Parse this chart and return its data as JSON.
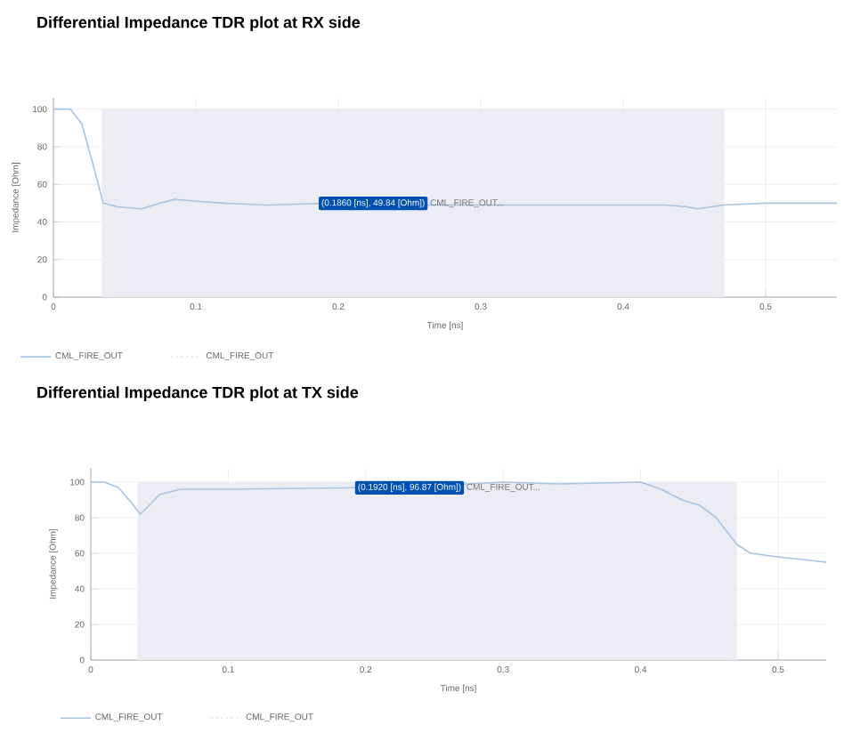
{
  "chart_data": [
    {
      "type": "line",
      "title": "Differential Impedance TDR plot at RX side",
      "xlabel": "Time [ns]",
      "ylabel": "Impedance [Ohm]",
      "x": [
        0,
        0.012,
        0.02,
        0.028,
        0.035,
        0.045,
        0.062,
        0.075,
        0.085,
        0.1,
        0.12,
        0.15,
        0.186,
        0.25,
        0.3,
        0.35,
        0.43,
        0.445,
        0.452,
        0.462,
        0.47,
        0.5,
        0.55
      ],
      "series": [
        {
          "name": "CML_FIRE_OUT",
          "color": "#a9c4e0",
          "values": [
            100,
            100,
            92,
            70,
            50,
            48,
            47,
            50,
            52,
            51,
            50,
            49,
            49.84,
            49,
            49,
            49,
            49,
            48,
            47,
            48,
            49,
            50,
            50
          ]
        }
      ],
      "bands": [
        {
          "axis": "x",
          "from": 0.034,
          "to": 0.471,
          "label": "CML_FIRE_OUT",
          "color": "#ecedf4"
        }
      ],
      "annotations": [
        {
          "text": "(0.1860 [ns], 49.84 [Ohm])",
          "x": 0.186,
          "y": 49.84
        },
        "CML_FIRE_OUT..."
      ],
      "xlim": [
        0,
        0.55
      ],
      "ylim": [
        0,
        106
      ],
      "xticks": [
        0,
        0.1,
        0.2,
        0.3,
        0.4,
        0.5
      ],
      "yticks": [
        0,
        20,
        40,
        60,
        80,
        100
      ],
      "grid": true,
      "legend": "bottom left"
    },
    {
      "type": "line",
      "title": "Differential Impedance TDR plot at TX side",
      "xlabel": "Time [ns]",
      "ylabel": "Impedance [Ohm]",
      "x": [
        0,
        0.01,
        0.02,
        0.03,
        0.036,
        0.04,
        0.05,
        0.065,
        0.1,
        0.192,
        0.25,
        0.3,
        0.34,
        0.4,
        0.415,
        0.43,
        0.443,
        0.455,
        0.47,
        0.48,
        0.5,
        0.535
      ],
      "series": [
        {
          "name": "CML_FIRE_OUT",
          "color": "#a9c4e0",
          "values": [
            100,
            100,
            97,
            88,
            82,
            85,
            93,
            96,
            96,
            96.87,
            98,
            100,
            99,
            100,
            96,
            90,
            87,
            80,
            65,
            60,
            58,
            55
          ]
        }
      ],
      "bands": [
        {
          "axis": "x",
          "from": 0.034,
          "to": 0.47,
          "label": "CML_FIRE_OUT",
          "color": "#ecedf4"
        }
      ],
      "annotations": [
        {
          "text": "(0.1920 [ns], 96.87 [Ohm])",
          "x": 0.192,
          "y": 96.87
        },
        "CML_FIRE_OUT..."
      ],
      "xlim": [
        0,
        0.535
      ],
      "ylim": [
        0,
        108
      ],
      "xticks": [
        0,
        0.1,
        0.2,
        0.3,
        0.4,
        0.5
      ],
      "yticks": [
        0,
        20,
        40,
        60,
        80,
        100
      ],
      "grid": true,
      "legend": "bottom left"
    }
  ]
}
